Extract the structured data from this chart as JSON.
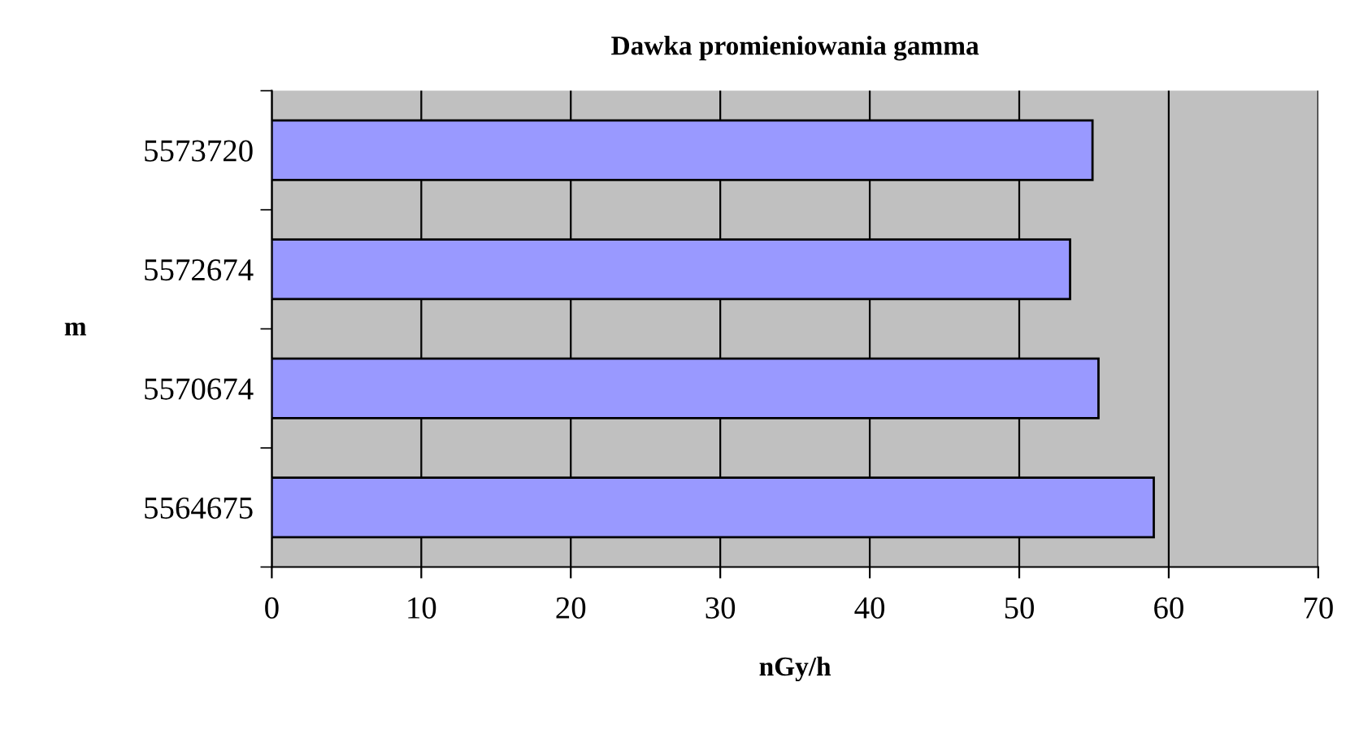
{
  "chart_data": {
    "type": "bar",
    "orientation": "horizontal",
    "title": "Dawka promieniowania gamma",
    "xlabel": "nGy/h",
    "ylabel": "m",
    "categories": [
      "5573720",
      "5572674",
      "5570674",
      "5564675"
    ],
    "values": [
      54.9,
      53.4,
      55.3,
      59.0
    ],
    "color": "#9999ff",
    "xlim": [
      0,
      70
    ],
    "xticks": [
      0,
      10,
      20,
      30,
      40,
      50,
      60,
      70
    ],
    "grid": "x",
    "legend": false
  }
}
